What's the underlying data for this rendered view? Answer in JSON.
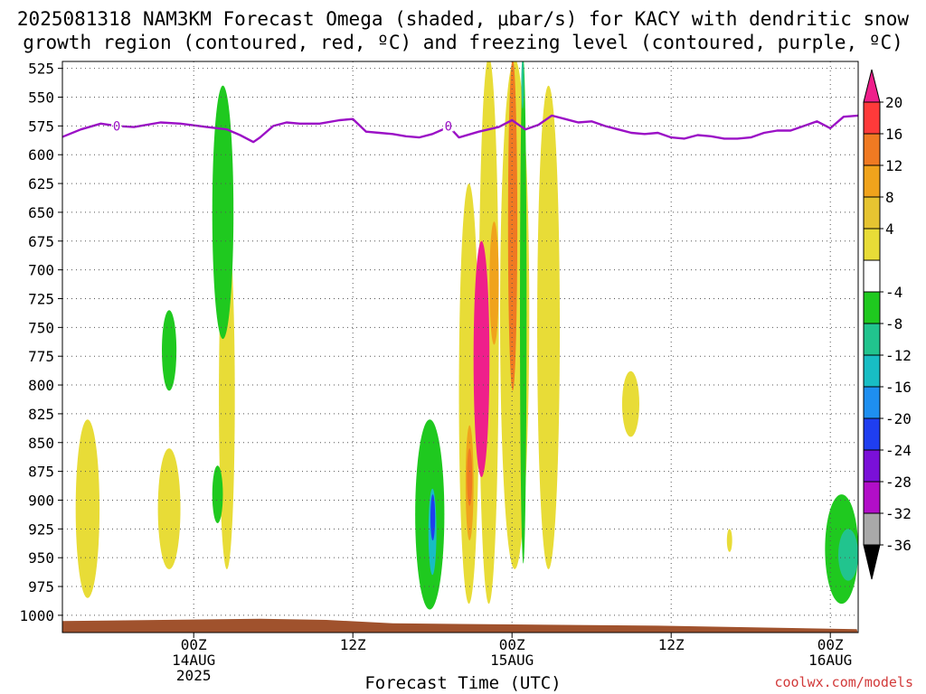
{
  "title_line1": "2025081318 NAM3KM Forecast Omega (shaded, μbar/s) for KACY with dendritic snow",
  "title_line2": "growth region (contoured, red, ºC) and freezing level (contoured, purple, ºC)",
  "xlabel": "Forecast Time (UTC)",
  "credit": "coolwx.com/models",
  "colors": {
    "grid": "#555555",
    "freezing_line": "#9b10c6",
    "terrain": "#a0522d"
  },
  "chart_data": {
    "type": "heatmap",
    "title": "2025081318 NAM3KM Forecast Omega (shaded, μbar/s) for KACY with dendritic snow growth region (contoured, red, ºC) and freezing level (contoured, purple, ºC)",
    "xlabel": "Forecast Time (UTC)",
    "ylabel": "",
    "y_scale": "pressure (hPa), decreasing upward",
    "ylim": [
      1015,
      519
    ],
    "xlim_hours": [
      -9.9,
      50.1
    ],
    "y_ticks": [
      525,
      550,
      575,
      600,
      625,
      650,
      675,
      700,
      725,
      750,
      775,
      800,
      825,
      850,
      875,
      900,
      925,
      950,
      975,
      1000
    ],
    "x_ticks": [
      {
        "hour": 0,
        "label": "00Z",
        "sub1": "14AUG",
        "sub2": "2025"
      },
      {
        "hour": 12,
        "label": "12Z",
        "sub1": "",
        "sub2": ""
      },
      {
        "hour": 24,
        "label": "00Z",
        "sub1": "15AUG",
        "sub2": ""
      },
      {
        "hour": 36,
        "label": "12Z",
        "sub1": "",
        "sub2": ""
      },
      {
        "hour": 48,
        "label": "00Z",
        "sub1": "16AUG",
        "sub2": ""
      }
    ],
    "grid": true,
    "colorbar": {
      "placement": "right",
      "labels": [
        "20",
        "16",
        "12",
        "8",
        "4",
        "-4",
        "-8",
        "-12",
        "-16",
        "-20",
        "-24",
        "-28",
        "-32",
        "-36"
      ],
      "bins": [
        {
          "color": "#ff3a3a"
        },
        {
          "color": "#f07a22"
        },
        {
          "color": "#f0a31c"
        },
        {
          "color": "#e6c431"
        },
        {
          "color": "#e8dc37"
        },
        {
          "color": "#ffffff"
        },
        {
          "color": "#1fc91f"
        },
        {
          "color": "#21c48e"
        },
        {
          "color": "#18bdc4"
        },
        {
          "color": "#1e8ff0"
        },
        {
          "color": "#1f3ef0"
        },
        {
          "color": "#7a10d8"
        },
        {
          "color": "#b20ec8"
        },
        {
          "color": "#a9a9a9"
        }
      ],
      "top_arrow_color": "#ef1f8b",
      "bottom_arrow_color": "#000000"
    },
    "freezing_level": {
      "label": "0",
      "label_hours": [
        -5.8,
        19.2
      ],
      "hours": [
        -10,
        -8.5,
        -7,
        -5.8,
        -4.5,
        -2.5,
        -1,
        1,
        2.5,
        3.5,
        4.5,
        5,
        6,
        7,
        8,
        9.5,
        11,
        12,
        13,
        14,
        15,
        16,
        17,
        18,
        19,
        19.2,
        20,
        21.5,
        23,
        24,
        25,
        26,
        27,
        28,
        29,
        30,
        31,
        32,
        33,
        34,
        35,
        36,
        37,
        38,
        39,
        40,
        41,
        42,
        43,
        44,
        45,
        46,
        47,
        48,
        49,
        50.1
      ],
      "pressure": [
        585,
        578,
        573,
        575,
        576,
        572,
        573,
        576,
        578,
        583,
        589,
        585,
        575,
        572,
        573,
        573,
        570,
        569,
        580,
        581,
        582,
        584,
        585,
        582,
        577,
        575,
        585,
        580,
        576,
        570,
        578,
        574,
        566,
        569,
        572,
        571,
        575,
        578,
        581,
        582,
        581,
        585,
        586,
        583,
        584,
        586,
        586,
        585,
        581,
        579,
        579,
        575,
        571,
        577,
        567,
        566,
        568
      ]
    },
    "terrain_pressure": [
      [
        -10,
        1005
      ],
      [
        5,
        1003
      ],
      [
        10,
        1004
      ],
      [
        15,
        1007
      ],
      [
        25,
        1008
      ],
      [
        35,
        1009
      ],
      [
        50,
        1012
      ]
    ],
    "features": [
      {
        "band": "4 to 8",
        "hour_range": [
          -8.9,
          -7.1
        ],
        "p_range": [
          830,
          985
        ]
      },
      {
        "band": "4 to 8",
        "hour_range": [
          -2.7,
          -1.0
        ],
        "p_range": [
          855,
          960
        ]
      },
      {
        "band": "4 to 8",
        "hour_range": [
          1.9,
          3.1
        ],
        "p_range": [
          660,
          960
        ]
      },
      {
        "band": "4 to 8",
        "hour_range": [
          32.3,
          33.6
        ],
        "p_range": [
          788,
          845
        ]
      },
      {
        "band": "4 to 8",
        "hour_range": [
          40.2,
          40.6
        ],
        "p_range": [
          925,
          945
        ]
      },
      {
        "band": "-4 to -8",
        "hour_range": [
          1.4,
          3.0
        ],
        "p_range": [
          540,
          760
        ]
      },
      {
        "band": "-4 to -8",
        "hour_range": [
          -2.4,
          -1.3
        ],
        "p_range": [
          735,
          805
        ]
      },
      {
        "band": "-4 to -8",
        "hour_range": [
          1.4,
          2.2
        ],
        "p_range": [
          870,
          920
        ]
      },
      {
        "band": "-4 to -8",
        "hour_range": [
          16.7,
          18.9
        ],
        "p_range": [
          830,
          995
        ]
      },
      {
        "band": "-8 to -16",
        "hour_range": [
          17.7,
          18.3
        ],
        "p_range": [
          890,
          965
        ]
      },
      {
        "band": "-16 to -24",
        "hour_range": [
          17.85,
          18.2
        ],
        "p_range": [
          895,
          935
        ]
      },
      {
        "band": "4 to 8",
        "hour_range": [
          21.5,
          23.0
        ],
        "p_range": [
          515,
          990
        ]
      },
      {
        "band": "4 to 8",
        "hour_range": [
          20.0,
          21.5
        ],
        "p_range": [
          625,
          990
        ]
      },
      {
        "band": "8 to 12",
        "hour_range": [
          20.5,
          21.1
        ],
        "p_range": [
          835,
          935
        ]
      },
      {
        "band": "12 to 16",
        "hour_range": [
          20.6,
          21.0
        ],
        "p_range": [
          855,
          905
        ]
      },
      {
        "band": "8 to 12",
        "hour_range": [
          22.3,
          23.0
        ],
        "p_range": [
          658,
          765
        ]
      },
      {
        "band": ">20",
        "hour_range": [
          21.1,
          22.3
        ],
        "p_range": [
          675,
          880
        ]
      },
      {
        "band": "4 to 8",
        "hour_range": [
          23.1,
          25.3
        ],
        "p_range": [
          517,
          960
        ]
      },
      {
        "band": "12 to 16",
        "hour_range": [
          23.7,
          24.4
        ],
        "p_range": [
          517,
          805
        ]
      },
      {
        "band": "4 to 8",
        "hour_range": [
          25.9,
          27.6
        ],
        "p_range": [
          540,
          960
        ]
      },
      {
        "band": "-4 to -8",
        "hour_range": [
          24.6,
          25.1
        ],
        "p_range": [
          517,
          955
        ]
      },
      {
        "band": "-8 to -12",
        "hour_range": [
          24.7,
          24.9
        ],
        "p_range": [
          517,
          560
        ]
      },
      {
        "band": "-4 to -8",
        "hour_range": [
          47.6,
          50.1
        ],
        "p_range": [
          895,
          990
        ]
      },
      {
        "band": "-8 to -12",
        "hour_range": [
          48.6,
          50.1
        ],
        "p_range": [
          925,
          970
        ]
      }
    ]
  }
}
